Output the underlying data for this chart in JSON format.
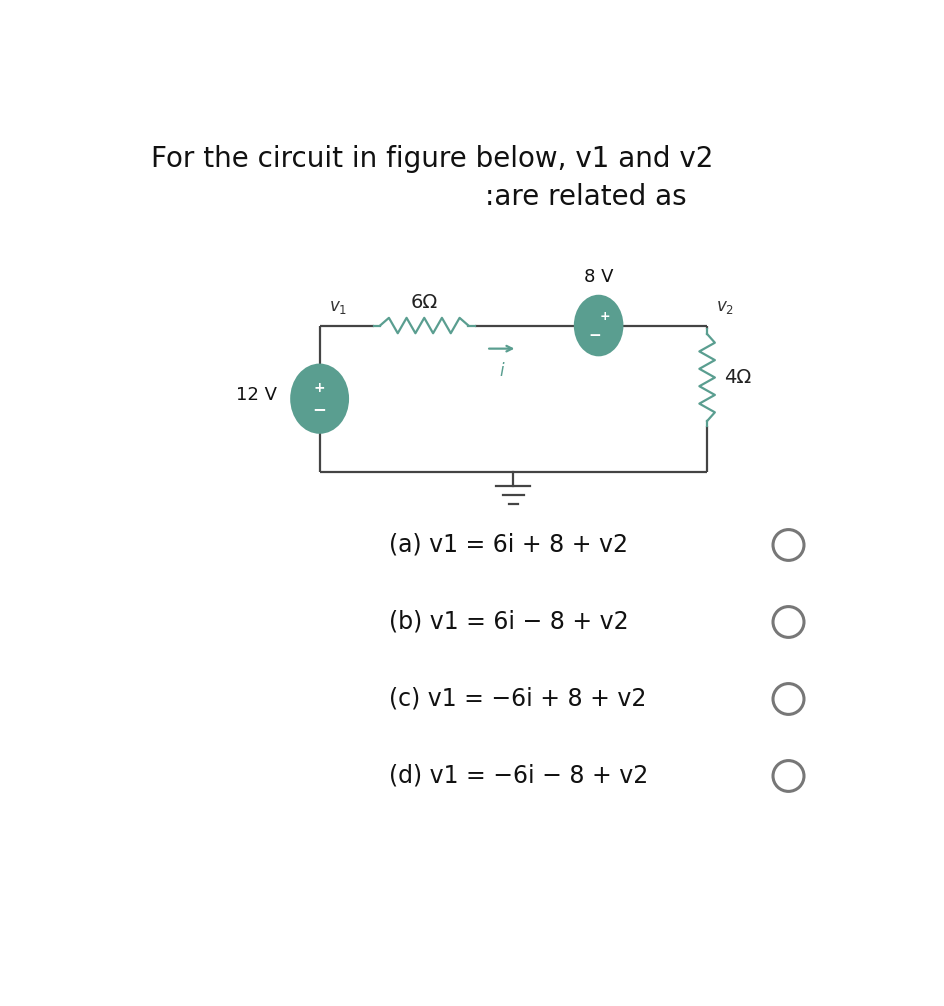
{
  "title_line1": "For the circuit in figure below, v1 and v2",
  "title_line2": ":are related as",
  "circuit_color": "#5a9e90",
  "wire_color": "#444444",
  "bg_color": "#ffffff",
  "options": [
    "(a) v1 = 6i + 8 + v2",
    "(b) v1 = 6i − 8 + v2",
    "(c) v1 = −6i + 8 + v2",
    "(d) v1 = −6i − 8 + v2"
  ],
  "font_size_title": 20,
  "font_size_options": 17,
  "font_size_circuit": 13,
  "font_size_labels": 12
}
